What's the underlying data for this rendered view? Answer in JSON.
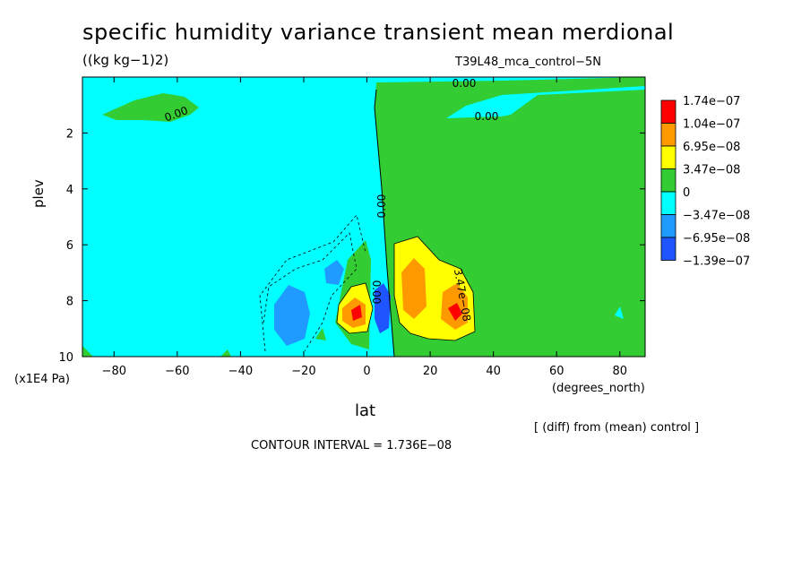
{
  "chart_data": {
    "type": "heatmap",
    "title": "specific humidity variance transient mean merdional",
    "units": "((kg kg−1)2)",
    "run_label": "T39L48_mca_control−5N",
    "xlabel": "lat",
    "x_units": "(degrees_north)",
    "ylabel": "plev",
    "y_units": "(x1E4 Pa)",
    "xlim": [
      -90,
      88
    ],
    "ylim": [
      0,
      10
    ],
    "y_inverted": true,
    "x_ticks": [
      "−80",
      "−60",
      "−40",
      "−20",
      "0",
      "20",
      "40",
      "60",
      "80"
    ],
    "x_tick_values": [
      -80,
      -60,
      -40,
      -20,
      0,
      20,
      40,
      60,
      80
    ],
    "y_ticks": [
      "2",
      "4",
      "6",
      "8",
      "10"
    ],
    "y_tick_values": [
      2,
      4,
      6,
      8,
      10
    ],
    "contour_interval_text": "CONTOUR INTERVAL = 1.736E−08",
    "note": "[ (diff) from (mean) control ]",
    "colorbar": {
      "levels": [
        "1.74e−07",
        "1.04e−07",
        "6.95e−08",
        "3.47e−08",
        "0",
        "−3.47e−08",
        "−6.95e−08",
        "−1.39e−07"
      ],
      "colors": [
        "#ff0000",
        "#ff9900",
        "#ffff00",
        "#33cc33",
        "#00ffff",
        "#1f9bff",
        "#1f55ff"
      ]
    },
    "contour_labels": [
      "0.00",
      "0.00",
      "0.00",
      "0.00",
      "3.47e−08",
      "0.00"
    ]
  }
}
